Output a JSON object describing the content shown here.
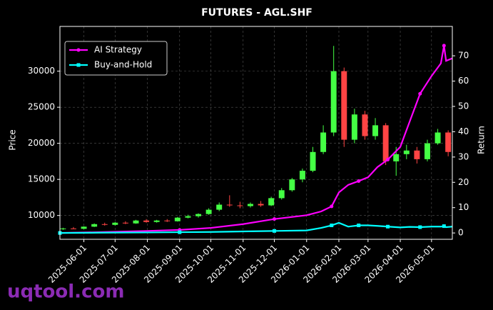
{
  "chart_data": {
    "type": "candlestick",
    "title": "FUTURES - AGL.SHF",
    "ylabel": "Price",
    "y2label": "Return",
    "watermark": "uqtool.com",
    "grid": true,
    "legend": "upper left",
    "xlim": [
      "2025-05-09",
      "2026-05-21"
    ],
    "xticks": [
      "2025-06-01",
      "2025-07-01",
      "2025-08-01",
      "2025-09-01",
      "2025-10-01",
      "2025-11-01",
      "2025-12-01",
      "2026-01-01",
      "2026-02-01",
      "2026-03-01",
      "2026-04-01",
      "2026-05-01"
    ],
    "ylim": [
      6700,
      36200
    ],
    "yticks": [
      10000,
      15000,
      20000,
      25000,
      30000
    ],
    "y2lim": [
      -2.5,
      81.6
    ],
    "y2ticks": [
      0,
      10,
      20,
      30,
      40,
      50,
      60,
      70
    ],
    "candles": {
      "up_color": "#44ff44",
      "down_color": "#ff4444",
      "x": [
        "2025-05-12",
        "2025-05-22",
        "2025-06-01",
        "2025-06-11",
        "2025-06-21",
        "2025-07-01",
        "2025-07-11",
        "2025-07-21",
        "2025-07-31",
        "2025-08-10",
        "2025-08-20",
        "2025-08-30",
        "2025-09-09",
        "2025-09-19",
        "2025-09-29",
        "2025-10-09",
        "2025-10-19",
        "2025-10-29",
        "2025-11-08",
        "2025-11-18",
        "2025-11-28",
        "2025-12-08",
        "2025-12-18",
        "2025-12-28",
        "2026-01-07",
        "2026-01-17",
        "2026-01-27",
        "2026-02-06",
        "2026-02-16",
        "2026-02-26",
        "2026-03-08",
        "2026-03-18",
        "2026-03-28",
        "2026-04-07",
        "2026-04-17",
        "2026-04-27",
        "2026-05-07",
        "2026-05-17"
      ],
      "open": [
        8100,
        8200,
        8150,
        8450,
        8800,
        8700,
        9000,
        8900,
        9300,
        9100,
        9300,
        9200,
        9700,
        9900,
        10200,
        10800,
        11500,
        11400,
        11300,
        11600,
        11400,
        12400,
        13500,
        15000,
        16200,
        18800,
        21500,
        30000,
        20500,
        24000,
        21000,
        22500,
        17500,
        18500,
        19000,
        17800,
        20000,
        21500
      ],
      "high": [
        8300,
        8400,
        8500,
        8900,
        9000,
        9100,
        9200,
        9400,
        9500,
        9400,
        9500,
        9800,
        10100,
        10300,
        11000,
        11800,
        12800,
        11900,
        11800,
        12000,
        12600,
        13800,
        15200,
        16500,
        19500,
        22500,
        33500,
        30500,
        24800,
        24500,
        23500,
        22800,
        19500,
        19800,
        19500,
        20500,
        22000,
        21800
      ],
      "low": [
        8000,
        8100,
        8100,
        8400,
        8600,
        8600,
        8800,
        8850,
        9000,
        9000,
        9100,
        9150,
        9600,
        9700,
        10100,
        10600,
        11200,
        11000,
        11100,
        11200,
        11300,
        12200,
        13300,
        14600,
        16000,
        18500,
        21000,
        19500,
        20000,
        20500,
        20500,
        17000,
        15500,
        17800,
        17200,
        17500,
        19800,
        18200
      ],
      "close": [
        8200,
        8150,
        8450,
        8800,
        8700,
        9000,
        8900,
        9300,
        9100,
        9300,
        9200,
        9700,
        9900,
        10200,
        10800,
        11500,
        11400,
        11300,
        11600,
        11400,
        12400,
        13500,
        15000,
        16200,
        18800,
        21500,
        30000,
        20500,
        24000,
        21000,
        22500,
        17500,
        18500,
        19000,
        17800,
        20000,
        21500,
        18800
      ]
    },
    "x": [
      "2025-05-09",
      "2025-06-15",
      "2025-08-01",
      "2025-09-01",
      "2025-10-01",
      "2025-11-01",
      "2025-12-01",
      "2026-01-01",
      "2026-01-15",
      "2026-01-25",
      "2026-02-01",
      "2026-02-10",
      "2026-02-20",
      "2026-03-01",
      "2026-03-10",
      "2026-03-20",
      "2026-04-01",
      "2026-04-10",
      "2026-04-20",
      "2026-05-01",
      "2026-05-10",
      "2026-05-13",
      "2026-05-15",
      "2026-05-21"
    ],
    "series": [
      {
        "name": "AI Strategy",
        "color": "#ff00ff",
        "axis": "y2",
        "marker": "circle",
        "values": [
          0,
          0.3,
          0.8,
          1.2,
          2,
          3.5,
          5.5,
          7,
          8.5,
          10.5,
          16,
          19,
          20.5,
          22,
          26,
          29,
          34,
          44,
          55,
          62,
          67,
          74,
          68,
          69
        ]
      },
      {
        "name": "Buy-and-Hold",
        "color": "#00ffff",
        "axis": "y2",
        "marker": "square",
        "values": [
          0,
          0.1,
          0.2,
          0.3,
          0.4,
          0.6,
          0.8,
          1,
          2,
          3,
          4,
          2.5,
          3,
          3,
          2.8,
          2.5,
          2.2,
          2.4,
          2.3,
          2.5,
          2.5,
          2.7,
          2.3,
          2.5
        ]
      }
    ]
  }
}
